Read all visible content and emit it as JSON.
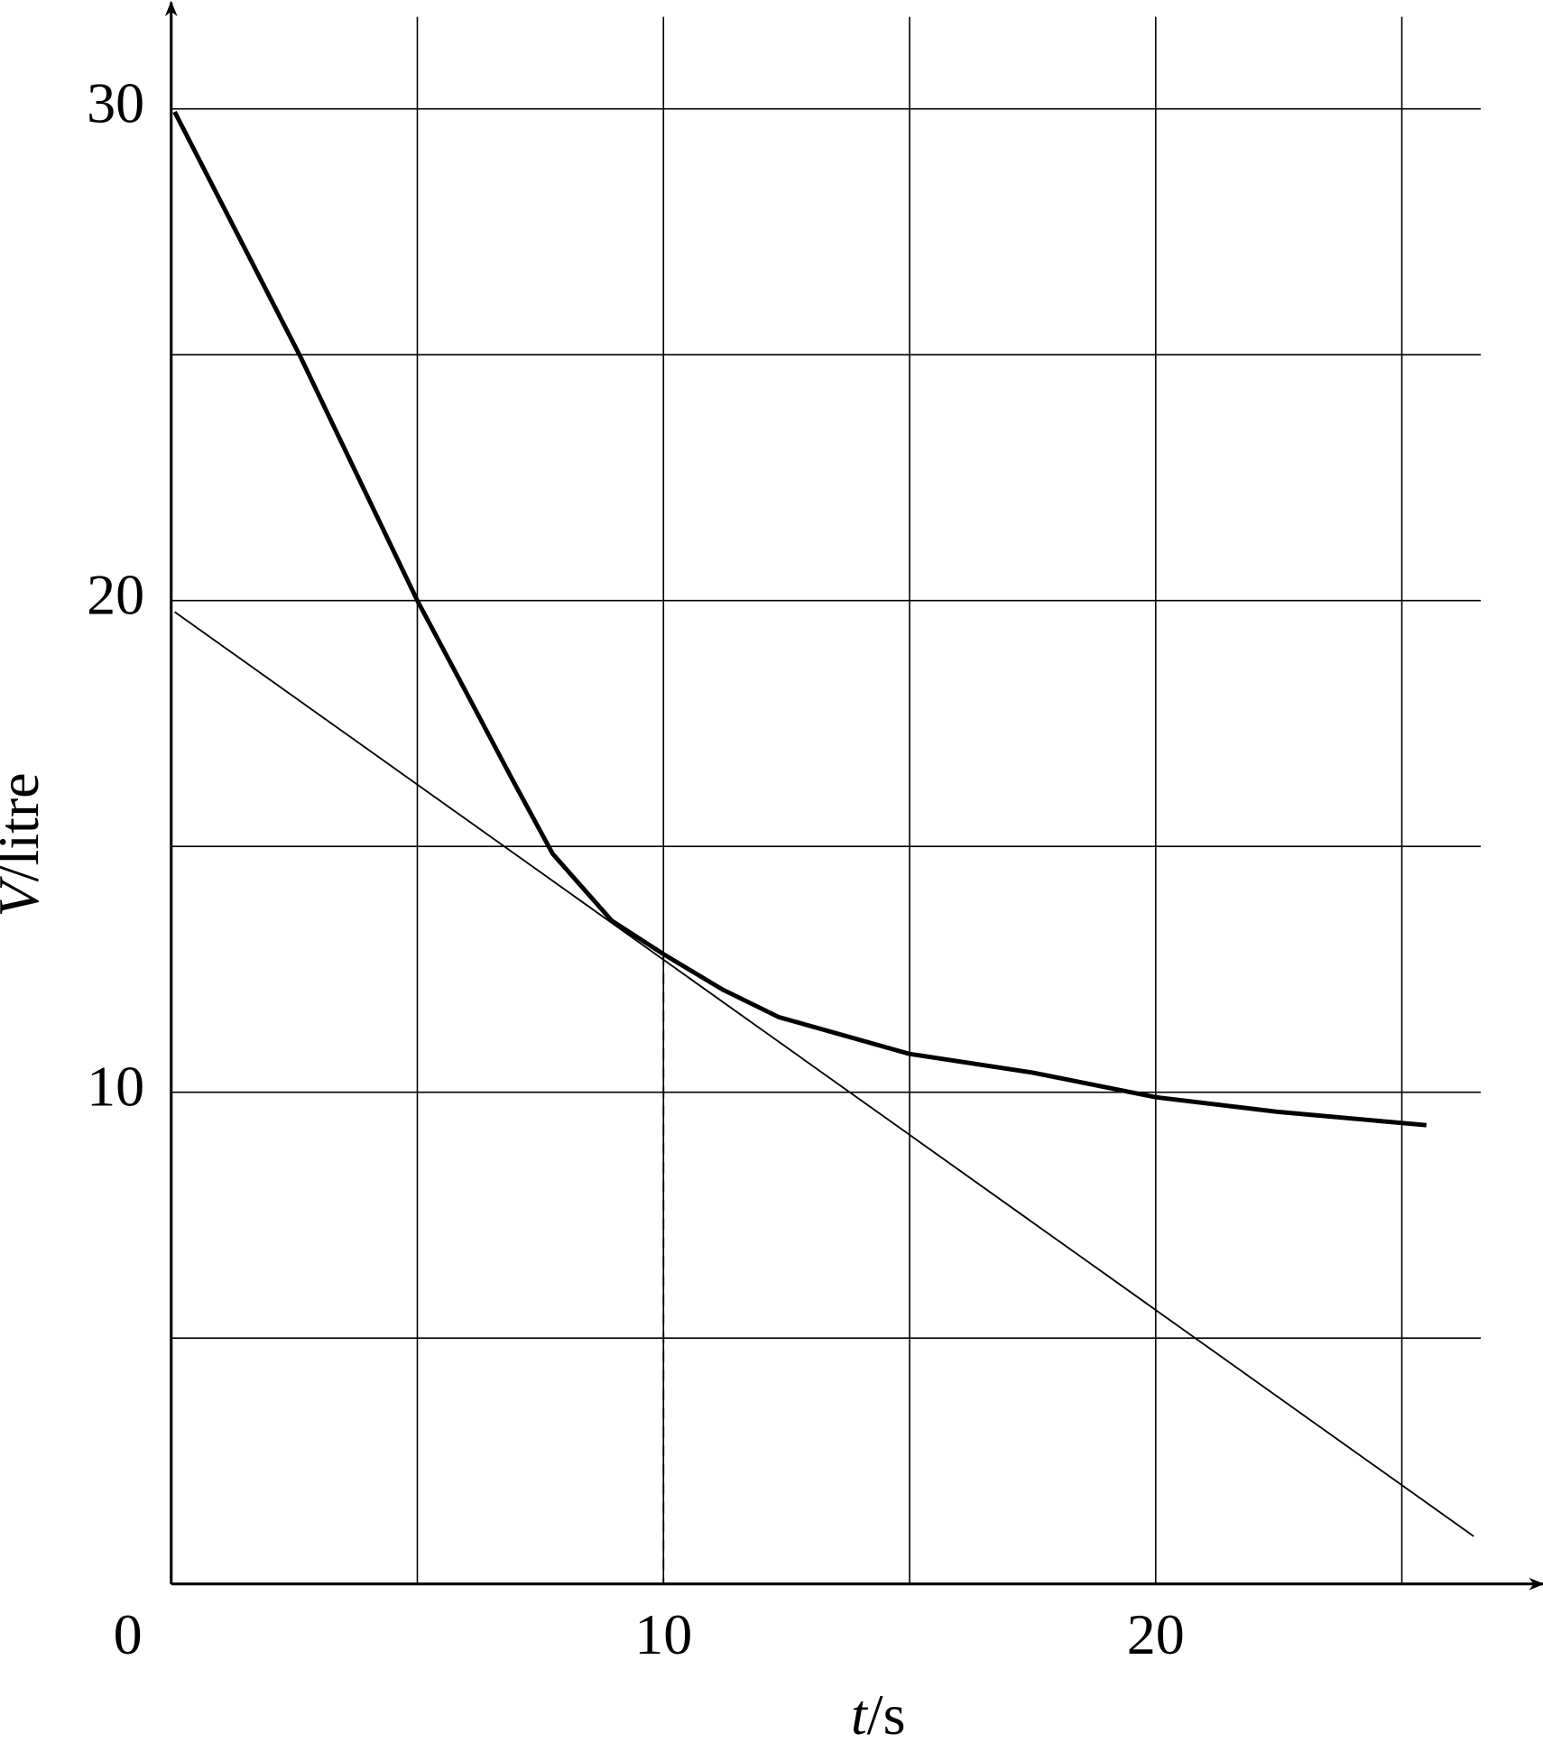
{
  "chart_data": {
    "type": "line",
    "x_label": "t/s",
    "y_label": "V/litre",
    "xlim": [
      0,
      27.8
    ],
    "ylim": [
      0,
      32.1
    ],
    "xticks": [
      0,
      10,
      20
    ],
    "yticks": [
      10,
      20,
      30
    ],
    "xgrid": [
      5,
      10,
      15,
      20,
      25
    ],
    "ygrid": [
      5,
      10,
      15,
      20,
      25,
      30
    ],
    "series": [
      {
        "color": "#000000",
        "width": 4,
        "x": [
          0.07,
          2.62,
          5,
          6.08,
          6.92,
          7.75,
          8.95,
          10,
          11.2,
          12.34,
          15,
          17.5,
          20,
          22.5,
          25.5
        ],
        "values": [
          29.94,
          24.97,
          20,
          17.97,
          16.38,
          14.85,
          13.49,
          12.81,
          12.09,
          11.53,
          10.78,
          10.4,
          9.9,
          9.6,
          9.33
        ]
      },
      {
        "color": "#000000",
        "width": 1.5,
        "x": [
          0.07,
          26.46
        ],
        "values": [
          19.77,
          0.97
        ]
      },
      {
        "color": "#000000",
        "width": 1.5,
        "dashed": true,
        "x": [
          10,
          10
        ],
        "values": [
          12.81,
          0
        ]
      }
    ]
  }
}
